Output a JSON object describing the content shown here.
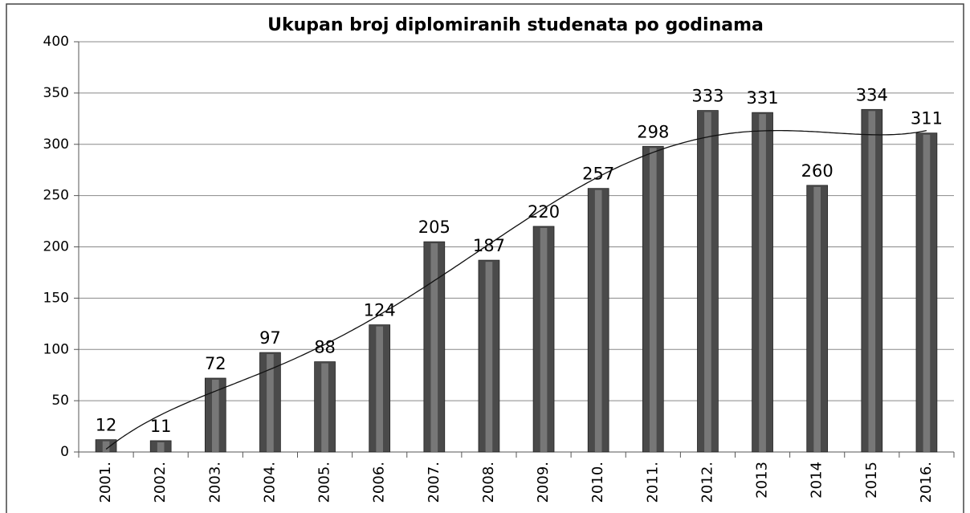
{
  "chart_data": {
    "type": "bar",
    "title": "Ukupan broj diplomiranih studenata  po godinama",
    "categories": [
      "2001.",
      "2002.",
      "2003.",
      "2004.",
      "2005.",
      "2006.",
      "2007.",
      "2008.",
      "2009.",
      "2010.",
      "2011.",
      "2012.",
      "2013",
      "2014",
      "2015",
      "2016."
    ],
    "values": [
      12,
      11,
      72,
      97,
      88,
      124,
      205,
      187,
      220,
      257,
      298,
      333,
      331,
      260,
      334,
      311
    ],
    "color": "#4a4a4a",
    "ylim": [
      0,
      400
    ],
    "yticks": [
      0,
      50,
      100,
      150,
      200,
      250,
      300,
      350,
      400
    ],
    "grid": true,
    "trendline": "polynomial"
  }
}
